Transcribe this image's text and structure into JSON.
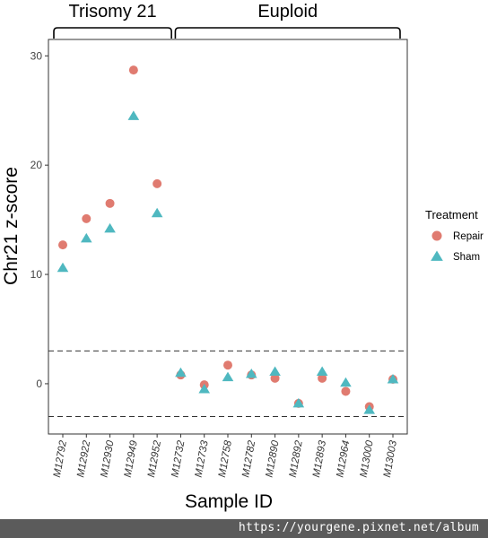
{
  "chart_data": {
    "type": "scatter",
    "ylabel": "Chr21 z-score",
    "xlabel": "Sample ID",
    "ylim": [
      -4.6,
      31.5
    ],
    "yticks": [
      0,
      10,
      20,
      30
    ],
    "reference_lines": [
      3,
      -3
    ],
    "categories": [
      "M12792",
      "M12922",
      "M12930",
      "M12949",
      "M12952",
      "M12732",
      "M12733",
      "M12758",
      "M12782",
      "M12890",
      "M12892",
      "M12893",
      "M12964",
      "M13000",
      "M13003"
    ],
    "groups": [
      {
        "label": "Trisomy 21",
        "categories": [
          "M12792",
          "M12922",
          "M12930",
          "M12949",
          "M12952"
        ]
      },
      {
        "label": "Euploid",
        "categories": [
          "M12732",
          "M12733",
          "M12758",
          "M12782",
          "M12890",
          "M12892",
          "M12893",
          "M12964",
          "M13000",
          "M13003"
        ]
      }
    ],
    "legend": {
      "title": "Treatment",
      "placement": "right"
    },
    "series": [
      {
        "name": "Repair",
        "marker": "circle",
        "color": "#E07B70",
        "values": [
          12.7,
          15.1,
          16.5,
          28.7,
          18.3,
          0.8,
          -0.1,
          1.7,
          0.8,
          0.5,
          -1.8,
          0.5,
          -0.7,
          -2.1,
          0.4
        ]
      },
      {
        "name": "Sham",
        "marker": "triangle",
        "color": "#4FB8C0",
        "values": [
          10.6,
          13.3,
          14.2,
          24.5,
          15.6,
          1.0,
          -0.5,
          0.6,
          0.9,
          1.1,
          -1.8,
          1.1,
          0.1,
          -2.4,
          0.4
        ]
      }
    ]
  },
  "footer": {
    "url": "https://yourgene.pixnet.net/album"
  }
}
